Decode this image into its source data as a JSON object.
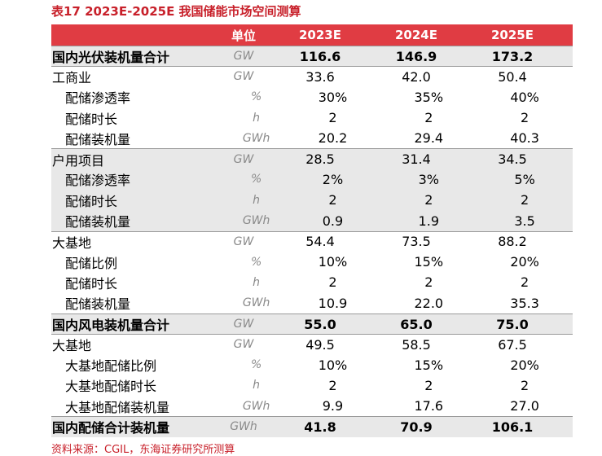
{
  "title": "表17  2023E-2025E 我国储能市场空间测算",
  "header": {
    "unit": "单位",
    "y1": "2023E",
    "y2": "2024E",
    "y3": "2025E"
  },
  "rows": [
    {
      "label": "国内光伏装机量合计",
      "unit": "GW",
      "v1": "116.6",
      "v2": "146.9",
      "v3": "173.2",
      "style": "total"
    },
    {
      "label": "工商业",
      "unit": "GW",
      "v1": "33.6",
      "v2": "42.0",
      "v3": "50.4",
      "style": "group"
    },
    {
      "label": "配储渗透率",
      "unit": "%",
      "v1": "30%",
      "v2": "35%",
      "v3": "40%",
      "style": "sub"
    },
    {
      "label": "配储时长",
      "unit": "h",
      "v1": "2",
      "v2": "2",
      "v3": "2",
      "style": "sub"
    },
    {
      "label": "配储装机量",
      "unit": "GWh",
      "v1": "20.2",
      "v2": "29.4",
      "v3": "40.3",
      "style": "sub"
    },
    {
      "label": "户用项目",
      "unit": "GW",
      "v1": "28.5",
      "v2": "31.4",
      "v3": "34.5",
      "style": "group-gray"
    },
    {
      "label": "配储渗透率",
      "unit": "%",
      "v1": "2%",
      "v2": "3%",
      "v3": "5%",
      "style": "sub-gray"
    },
    {
      "label": "配储时长",
      "unit": "h",
      "v1": "2",
      "v2": "2",
      "v3": "2",
      "style": "sub-gray"
    },
    {
      "label": "配储装机量",
      "unit": "GWh",
      "v1": "0.9",
      "v2": "1.9",
      "v3": "3.5",
      "style": "sub-gray"
    },
    {
      "label": "大基地",
      "unit": "GW",
      "v1": "54.4",
      "v2": "73.5",
      "v3": "88.2",
      "style": "group"
    },
    {
      "label": "配储比例",
      "unit": "%",
      "v1": "10%",
      "v2": "15%",
      "v3": "20%",
      "style": "sub"
    },
    {
      "label": "配储时长",
      "unit": "h",
      "v1": "2",
      "v2": "2",
      "v3": "2",
      "style": "sub"
    },
    {
      "label": "配储装机量",
      "unit": "GWh",
      "v1": "10.9",
      "v2": "22.0",
      "v3": "35.3",
      "style": "sub"
    },
    {
      "label": "国内风电装机量合计",
      "unit": "GW",
      "v1": "55.0",
      "v2": "65.0",
      "v3": "75.0",
      "style": "total"
    },
    {
      "label": "大基地",
      "unit": "GW",
      "v1": "49.5",
      "v2": "58.5",
      "v3": "67.5",
      "style": "group"
    },
    {
      "label": "大基地配储比例",
      "unit": "%",
      "v1": "10%",
      "v2": "15%",
      "v3": "20%",
      "style": "sub"
    },
    {
      "label": "大基地配储时长",
      "unit": "h",
      "v1": "2",
      "v2": "2",
      "v3": "2",
      "style": "sub"
    },
    {
      "label": "大基地配储装机量",
      "unit": "GWh",
      "v1": "9.9",
      "v2": "17.6",
      "v3": "27.0",
      "style": "sub"
    },
    {
      "label": "国内配储合计装机量",
      "unit": "GWh",
      "v1": "41.8",
      "v2": "70.9",
      "v3": "106.1",
      "style": "total"
    }
  ],
  "source": "资料来源：CGIL，东海证券研究所测算"
}
